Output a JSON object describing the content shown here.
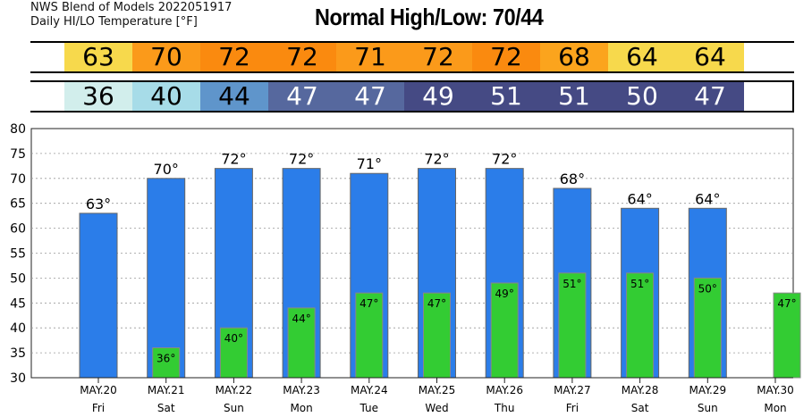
{
  "header": {
    "line1": "NWS Blend of Models 2022051917",
    "line2": "Daily HI/LO Temperature [°F]",
    "normal": "Normal High/Low:  70/44"
  },
  "colors": {
    "high_bar": "#2b7de9",
    "low_bar": "#33cc33",
    "hi_cells": [
      "#ffffff",
      "#f7d94c",
      "#fb9a1a",
      "#fa8a0f",
      "#fa8a0f",
      "#fb9a1a",
      "#fb9a1a",
      "#fa8a0f",
      "#fba41d",
      "#f7d94c",
      "#f7d94c",
      "#ffffff"
    ],
    "lo_cells": [
      "#ffffff",
      "#d2eeec",
      "#a7dce8",
      "#5f95cb",
      "#56689e",
      "#56689e",
      "#454a84",
      "#454a84",
      "#454a84",
      "#454a84",
      "#454a84"
    ],
    "lo_text": [
      "#000000",
      "#000000",
      "#000000",
      "#000000",
      "#ffffff",
      "#ffffff",
      "#ffffff",
      "#ffffff",
      "#ffffff",
      "#ffffff",
      "#ffffff"
    ]
  },
  "hi_row": [
    "",
    "63",
    "70",
    "72",
    "72",
    "71",
    "72",
    "72",
    "68",
    "64",
    "64",
    ""
  ],
  "lo_row": [
    "",
    "36",
    "40",
    "44",
    "47",
    "47",
    "49",
    "51",
    "51",
    "50",
    "47"
  ],
  "chart_data": {
    "type": "bar",
    "categories": [
      "MAY.20",
      "MAY.21",
      "MAY.22",
      "MAY.23",
      "MAY.24",
      "MAY.25",
      "MAY.26",
      "MAY.27",
      "MAY.28",
      "MAY.29",
      "MAY.30"
    ],
    "weekdays": [
      "Fri",
      "Sat",
      "Sun",
      "Mon",
      "Tue",
      "Wed",
      "Thu",
      "Fri",
      "Sat",
      "Sun",
      "Mon"
    ],
    "series": [
      {
        "values": [
          63,
          70,
          72,
          72,
          71,
          72,
          72,
          68,
          64,
          64,
          null
        ]
      },
      {
        "values": [
          null,
          36,
          40,
          44,
          47,
          47,
          49,
          51,
          51,
          50,
          47
        ]
      }
    ],
    "hi_labels": [
      "63°",
      "70°",
      "72°",
      "72°",
      "71°",
      "72°",
      "72°",
      "68°",
      "64°",
      "64°",
      ""
    ],
    "lo_labels": [
      "",
      "36°",
      "40°",
      "44°",
      "47°",
      "47°",
      "49°",
      "51°",
      "51°",
      "50°",
      "47°"
    ],
    "yticks": [
      "30",
      "35",
      "40",
      "45",
      "50",
      "55",
      "60",
      "65",
      "70",
      "75",
      "80"
    ],
    "ylim": [
      30,
      80
    ],
    "grid": true
  }
}
